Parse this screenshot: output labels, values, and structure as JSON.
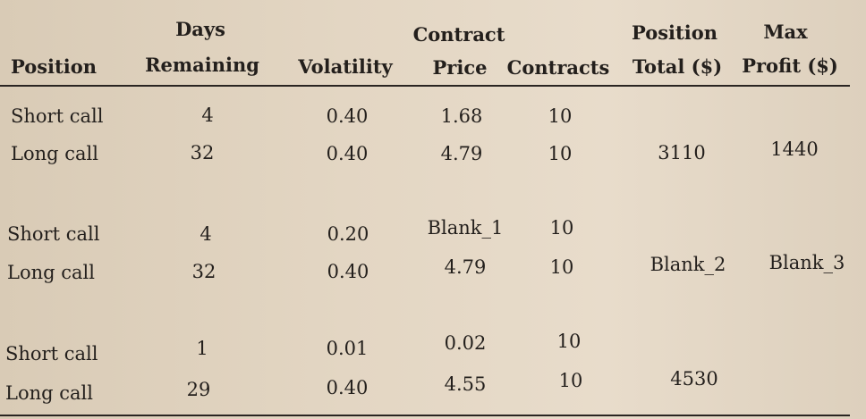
{
  "table": {
    "headers": {
      "position": "Position",
      "days_1": "Days",
      "days_2": "Remaining",
      "volatility": "Volatility",
      "contract_1": "Contract",
      "contract_2": "Price",
      "contracts": "Contracts",
      "position_total_1": "Position",
      "position_total_2": "Total ($)",
      "max_profit_1": "Max",
      "max_profit_2": "Profit ($)"
    },
    "rows": [
      {
        "position": "Short call",
        "days": "4",
        "volatility": "0.40",
        "price": "1.68",
        "contracts": "10",
        "total": "",
        "max_profit": ""
      },
      {
        "position": "Long call",
        "days": "32",
        "volatility": "0.40",
        "price": "4.79",
        "contracts": "10",
        "total": "3110",
        "max_profit": "1440"
      },
      {
        "position": "Short call",
        "days": "4",
        "volatility": "0.20",
        "price": "Blank_1",
        "contracts": "10",
        "total": "",
        "max_profit": ""
      },
      {
        "position": "Long call",
        "days": "32",
        "volatility": "0.40",
        "price": "4.79",
        "contracts": "10",
        "total": "Blank_2",
        "max_profit": "Blank_3"
      },
      {
        "position": "Short call",
        "days": "1",
        "volatility": "0.01",
        "price": "0.02",
        "contracts": "10",
        "total": "",
        "max_profit": ""
      },
      {
        "position": "Long call",
        "days": "29",
        "volatility": "0.40",
        "price": "4.55",
        "contracts": "10",
        "total": "4530",
        "max_profit": ""
      }
    ]
  }
}
